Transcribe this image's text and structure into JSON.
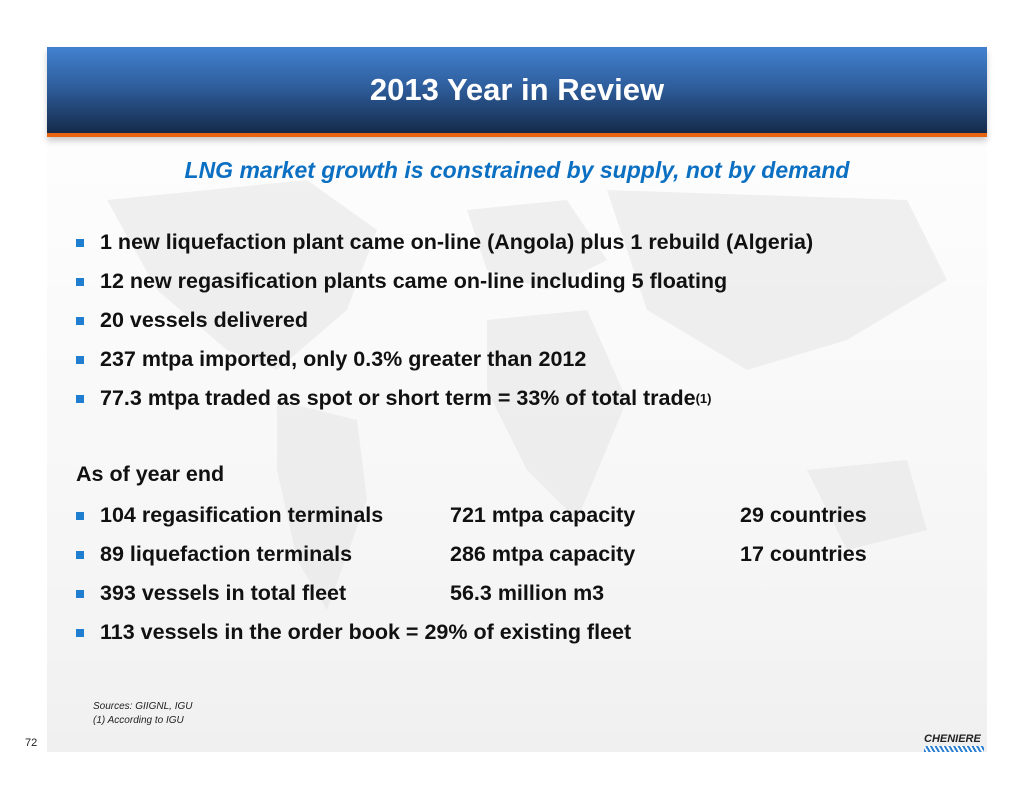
{
  "title": "2013 Year in Review",
  "subtitle": "LNG market growth is constrained by supply, not by demand",
  "bullets": [
    "1 new liquefaction plant came on-line (Angola) plus 1 rebuild (Algeria)",
    "12 new regasification plants came on-line including 5 floating",
    "20 vessels delivered",
    "237 mtpa imported, only 0.3% greater than 2012",
    "77.3 mtpa traded as spot or short term = 33% of total trade"
  ],
  "footnote_mark": "(1)",
  "as_of": "As of year end",
  "year_end": [
    {
      "a": "104 regasification terminals",
      "b": "721 mtpa capacity",
      "c": "29 countries"
    },
    {
      "a": "89 liquefaction terminals",
      "b": "286 mtpa capacity",
      "c": "17 countries"
    },
    {
      "a": "393 vessels in total fleet",
      "b": "56.3 million m3",
      "c": ""
    },
    {
      "a": "113 vessels in the order book = 29% of existing fleet",
      "b": "",
      "c": ""
    }
  ],
  "sources": "Sources: GIIGNL, IGU",
  "note": "(1) According to IGU",
  "page": "72",
  "logo": "CHENIERE"
}
